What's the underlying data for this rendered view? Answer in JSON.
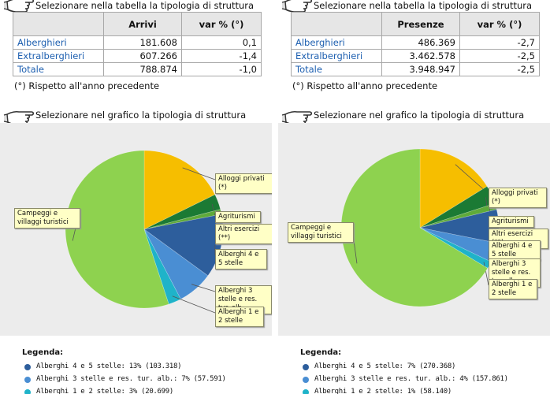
{
  "panels": [
    {
      "table_instruction": "Selezionare nella tabella la tipologia di struttura",
      "table": {
        "headers": [
          "Arrivi",
          "var % (°)"
        ],
        "rows": [
          [
            "Alberghieri",
            "181.608",
            "0,1"
          ],
          [
            "Extralberghieri",
            "607.266",
            "-1,4"
          ],
          [
            "Totale",
            "788.874",
            "-1,0"
          ]
        ]
      },
      "note": "(°) Rispetto all'anno precedente",
      "chart_instruction": "Selezionare nel grafico la tipologia di struttura",
      "legend_title": "Legenda:"
    },
    {
      "table_instruction": "Selezionare nella tabella la tipologia di struttura",
      "table": {
        "headers": [
          "Presenze",
          "var % (°)"
        ],
        "rows": [
          [
            "Alberghieri",
            "486.369",
            "-2,7"
          ],
          [
            "Extralberghieri",
            "3.462.578",
            "-2,5"
          ],
          [
            "Totale",
            "3.948.947",
            "-2,5"
          ]
        ]
      },
      "note": "(°) Rispetto all'anno precedente",
      "chart_instruction": "Selezionare nel grafico la tipologia di struttura",
      "legend_title": "Legenda:"
    }
  ],
  "chart_data": [
    {
      "type": "pie",
      "categories": [
        "Alloggi privati (*)",
        "Agriturismi",
        "Altri esercizi (**)",
        "Alberghi 4 e 5 stelle",
        "Alberghi 3 stelle e res. tur. alb.",
        "Alberghi 1 e 2 stelle",
        "Campeggi e villaggi turistici"
      ],
      "values": [
        140000,
        25000,
        8000,
        103318,
        57591,
        20699,
        434266
      ],
      "colors": [
        "#f6be00",
        "#1b7a34",
        "#5faa3a",
        "#2d5e9c",
        "#4a8ed3",
        "#1fb3c9",
        "#8ed24f"
      ],
      "legend_labels": [
        null,
        null,
        null,
        "Alberghi 4 e 5 stelle: 13%  (103.318)",
        "Alberghi 3 stelle e res. tur. alb.: 7%  (57.591)",
        "Alberghi 1 e 2 stelle: 3%  (20.699)",
        null
      ]
    },
    {
      "type": "pie",
      "categories": [
        "Alloggi privati (*)",
        "Agriturismi",
        "Altri esercizi (**)",
        "Alberghi 4 e 5 stelle",
        "Alberghi 3 stelle e res. tur. alb.",
        "Alberghi 1 e 2 stelle",
        "Campeggi e villaggi turistici"
      ],
      "values": [
        640000,
        150000,
        50000,
        270368,
        157861,
        58140,
        2622578
      ],
      "colors": [
        "#f6be00",
        "#1b7a34",
        "#5faa3a",
        "#2d5e9c",
        "#4a8ed3",
        "#1fb3c9",
        "#8ed24f"
      ],
      "legend_labels": [
        null,
        null,
        null,
        "Alberghi 4 e 5 stelle: 7%  (270.368)",
        "Alberghi 3 stelle e res. tur. alb.: 4%  (157.861)",
        "Alberghi 1 e 2 stelle: 1%  (58.140)",
        null
      ]
    }
  ]
}
